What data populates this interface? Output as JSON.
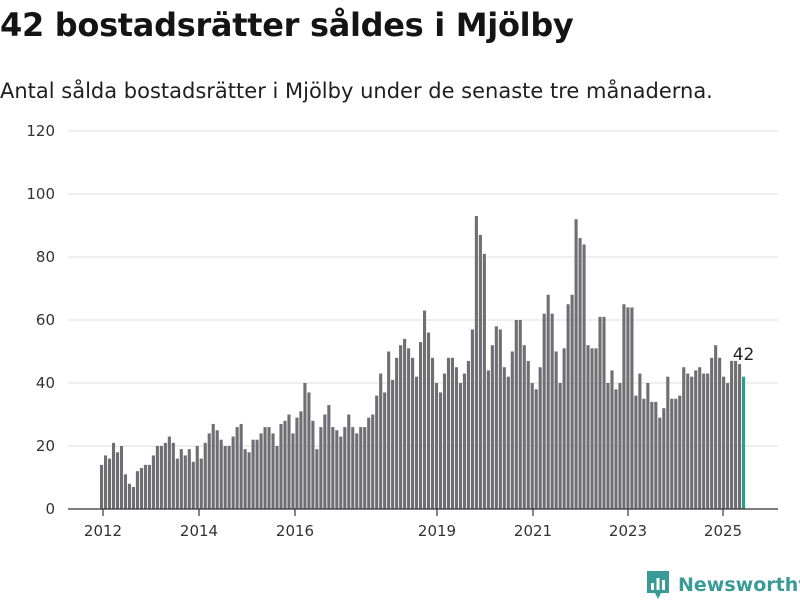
{
  "header": {
    "title": "42 bostadsrätter såldes i Mjölby",
    "subtitle": "Antal sålda bostadsrätter i Mjölby under de senaste tre månaderna."
  },
  "brand": {
    "name": "Newsworthy",
    "color": "#3a9a97"
  },
  "chart_data": {
    "type": "bar",
    "ylim": [
      0,
      120
    ],
    "yticks": [
      0,
      20,
      40,
      60,
      80,
      100,
      120
    ],
    "xticks": [
      "2012",
      "2014",
      "2016",
      "2019",
      "2021",
      "2023",
      "2025"
    ],
    "grid": true,
    "bar_color": "#6e6e73",
    "highlight_color": "#2a9d8f",
    "highlight_label": "42",
    "series": [
      {
        "values": [
          14,
          17,
          16,
          21,
          18,
          20,
          11,
          8,
          7,
          12,
          13,
          14,
          14,
          17,
          20,
          20,
          21,
          23,
          21,
          16,
          19,
          17,
          19,
          15,
          20,
          16,
          21,
          24,
          27,
          25,
          22,
          20,
          20,
          23,
          26,
          27,
          19,
          18,
          22,
          22,
          24,
          26,
          26,
          24,
          20,
          27,
          28,
          30,
          24,
          29,
          31,
          40,
          37,
          28,
          19,
          26,
          30,
          33,
          26,
          25,
          23,
          26,
          30,
          26,
          24,
          26,
          26,
          29,
          30,
          36,
          43,
          37,
          50,
          41,
          48,
          52,
          54,
          51,
          48,
          42,
          53,
          63,
          56,
          48,
          40,
          37,
          43,
          48,
          48,
          45,
          40,
          43,
          47,
          57,
          93,
          87,
          81,
          44,
          52,
          58,
          57,
          45,
          42,
          50,
          60,
          60,
          52,
          47,
          40,
          38,
          45,
          62,
          68,
          62,
          50,
          40,
          51,
          65,
          68,
          92,
          86,
          84,
          52,
          51,
          51,
          61,
          61,
          40,
          44,
          38,
          40,
          65,
          64,
          64,
          36,
          43,
          35,
          40,
          34,
          34,
          29,
          32,
          42,
          35,
          35,
          36,
          45,
          43,
          42,
          44,
          45,
          43,
          43,
          48,
          52,
          48,
          42,
          40,
          47,
          47,
          46,
          42
        ]
      }
    ]
  }
}
